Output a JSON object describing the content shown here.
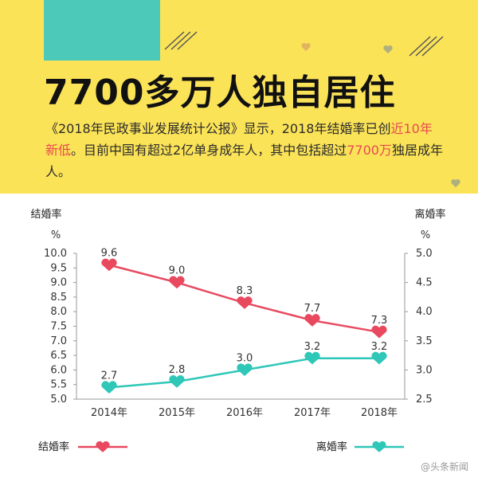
{
  "headline": "7700多万人独自居住",
  "paragraph": {
    "p1": "《2018年民政事业发展统计公报》显示，2018年结婚率已创",
    "p2": "近10年新低",
    "p3": "。目前中国有超过2亿单身成年人，其中包括超过",
    "p4": "7700万",
    "p5": "独居成年人。"
  },
  "colors": {
    "background": "#fbe358",
    "accent_block": "#4cc9b8",
    "highlight": "#e8494f",
    "marriage_line": "#e8495f",
    "divorce_line": "#2ec7b8"
  },
  "watermark": "@头条新闻",
  "chart_data": {
    "type": "line",
    "categories": [
      "2014年",
      "2015年",
      "2016年",
      "2017年",
      "2018年"
    ],
    "left_axis": {
      "title": "结婚率",
      "unit": "%",
      "ylim": [
        5.0,
        10.0
      ],
      "ticks": [
        "10.0",
        "9.5",
        "9.0",
        "8.5",
        "8.0",
        "7.5",
        "7.0",
        "6.5",
        "6.0",
        "5.5",
        "5.0"
      ]
    },
    "right_axis": {
      "title": "离婚率",
      "unit": "%",
      "ylim": [
        2.5,
        5.0
      ],
      "ticks": [
        "5.0",
        "4.5",
        "4.0",
        "3.5",
        "3.0",
        "2.5"
      ]
    },
    "series": [
      {
        "name": "结婚率",
        "axis": "left",
        "values": [
          9.6,
          9.0,
          8.3,
          7.7,
          7.3
        ],
        "labels": [
          "9.6",
          "9.0",
          "8.3",
          "7.7",
          "7.3"
        ],
        "color": "#e8495f"
      },
      {
        "name": "离婚率",
        "axis": "right",
        "values": [
          2.7,
          2.8,
          3.0,
          3.2,
          3.2
        ],
        "labels": [
          "2.7",
          "2.8",
          "3.0",
          "3.2",
          "3.2"
        ],
        "color": "#2ec7b8"
      }
    ],
    "legend": [
      "结婚率",
      "离婚率"
    ],
    "grid": false
  }
}
